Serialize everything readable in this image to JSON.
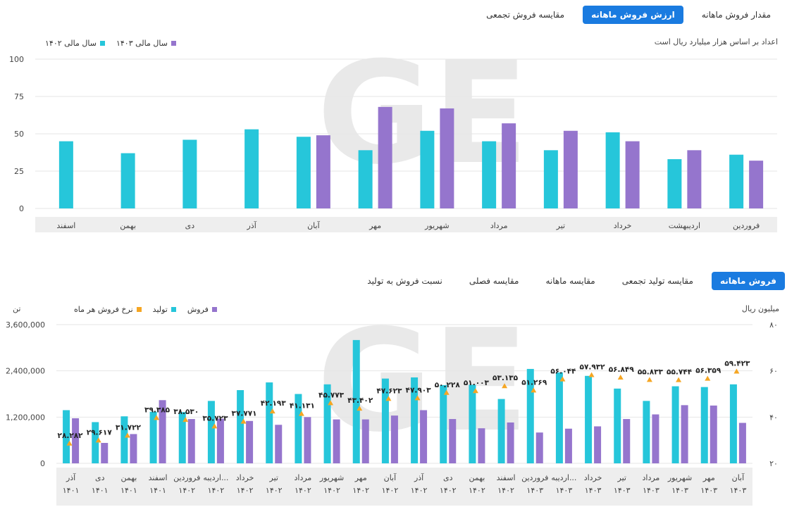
{
  "colors": {
    "cyan": "#26c6da",
    "purple": "#9575cd",
    "orange": "#f5a623",
    "accent": "#1a7be0",
    "category_band": "#eeeeee"
  },
  "top_tabs": [
    {
      "label": "مقدار فروش ماهانه",
      "active": false
    },
    {
      "label": "ارزش فروش ماهانه",
      "active": true
    },
    {
      "label": "مقایسه فروش تجمعی",
      "active": false
    }
  ],
  "top_chart": {
    "note": "اعداد بر اساس هزار میلیارد ریال است",
    "legend": [
      {
        "label": "سال مالی ۱۴۰۳",
        "color": "#9575cd"
      },
      {
        "label": "سال مالی ۱۴۰۲",
        "color": "#26c6da"
      }
    ]
  },
  "bottom_tabs": [
    {
      "label": "فروش ماهانه",
      "active": true
    },
    {
      "label": "مقایسه تولید تجمعی",
      "active": false
    },
    {
      "label": "مقایسه ماهانه",
      "active": false
    },
    {
      "label": "مقایسه فصلی",
      "active": false
    },
    {
      "label": "نسبت فروش به تولید",
      "active": false
    }
  ],
  "bottom_chart": {
    "unit_left": "تن",
    "unit_right": "میلیون ریال",
    "legend": [
      {
        "label": "فروش",
        "color": "#9575cd",
        "shape": "square"
      },
      {
        "label": "تولید",
        "color": "#26c6da",
        "shape": "square"
      },
      {
        "label": "نرخ فروش هر ماه",
        "color": "#f5a623",
        "shape": "square"
      }
    ]
  },
  "chart_data": [
    {
      "type": "bar",
      "categories": [
        "فروردین",
        "اردیبهشت",
        "خرداد",
        "تیر",
        "مرداد",
        "شهریور",
        "مهر",
        "آبان",
        "آذر",
        "دی",
        "بهمن",
        "اسفند"
      ],
      "series": [
        {
          "name": "سال مالی ۱۴۰۲",
          "color": "#26c6da",
          "values": [
            36,
            33,
            51,
            39,
            45,
            52,
            39,
            48,
            53,
            46,
            37,
            45
          ]
        },
        {
          "name": "سال مالی ۱۴۰۳",
          "color": "#9575cd",
          "values": [
            32,
            39,
            45,
            52,
            57,
            67,
            68,
            49,
            null,
            null,
            null,
            null
          ]
        }
      ],
      "ylim": [
        0,
        100
      ],
      "yticks": [
        "0",
        "25",
        "50",
        "75",
        "100"
      ],
      "grid": true
    },
    {
      "type": "bar",
      "categories": [
        [
          "آذر",
          "۱۴۰۱"
        ],
        [
          "دی",
          "۱۴۰۱"
        ],
        [
          "بهمن",
          "۱۴۰۱"
        ],
        [
          "اسفند",
          "۱۴۰۱"
        ],
        [
          "فروردین",
          "۱۴۰۲"
        ],
        [
          "اردیبه...",
          "۱۴۰۲"
        ],
        [
          "خرداد",
          "۱۴۰۲"
        ],
        [
          "تیر",
          "۱۴۰۲"
        ],
        [
          "مرداد",
          "۱۴۰۲"
        ],
        [
          "شهریور",
          "۱۴۰۲"
        ],
        [
          "مهر",
          "۱۴۰۲"
        ],
        [
          "آبان",
          "۱۴۰۲"
        ],
        [
          "آذر",
          "۱۴۰۲"
        ],
        [
          "دی",
          "۱۴۰۲"
        ],
        [
          "بهمن",
          "۱۴۰۲"
        ],
        [
          "اسفند",
          "۱۴۰۲"
        ],
        [
          "فروردین",
          "۱۴۰۳"
        ],
        [
          "اردیبه...",
          "۱۴۰۳"
        ],
        [
          "خرداد",
          "۱۴۰۳"
        ],
        [
          "تیر",
          "۱۴۰۳"
        ],
        [
          "مرداد",
          "۱۴۰۳"
        ],
        [
          "شهریور",
          "۱۴۰۳"
        ],
        [
          "مهر",
          "۱۴۰۳"
        ],
        [
          "آبان",
          "۱۴۰۳"
        ]
      ],
      "series": [
        {
          "name": "تولید",
          "color": "#26c6da",
          "axis": "left",
          "values": [
            1380000,
            1070000,
            1220000,
            1340000,
            1330000,
            1620000,
            1900000,
            2100000,
            1800000,
            2050000,
            3200000,
            2200000,
            2230000,
            2030000,
            2040000,
            1670000,
            2450000,
            2360000,
            2270000,
            1940000,
            1620000,
            2000000,
            1980000,
            2050000
          ]
        },
        {
          "name": "فروش",
          "color": "#9575cd",
          "axis": "left",
          "values": [
            1170000,
            530000,
            760000,
            1640000,
            1150000,
            1160000,
            1100000,
            1000000,
            1200000,
            1140000,
            1140000,
            1240000,
            1380000,
            1150000,
            910000,
            1060000,
            800000,
            900000,
            960000,
            1150000,
            1270000,
            1510000,
            1500000,
            1050000
          ]
        },
        {
          "name": "نرخ فروش هر ماه",
          "color": "#f5a623",
          "axis": "right",
          "values": [
            28.282,
            29.617,
            31.722,
            39.385,
            38.53,
            35.723,
            37.771,
            42.193,
            41.131,
            45.773,
            43.402,
            47.623,
            47.903,
            50.228,
            51.003,
            53.135,
            51.269,
            56.044,
            57.932,
            56.849,
            55.833,
            55.744,
            56.359,
            59.423
          ],
          "labels": [
            "۲۸.۲۸۲",
            "۲۹.۶۱۷",
            "۳۱.۷۲۲",
            "۳۹.۳۸۵",
            "۳۸.۵۳۰",
            "۳۵.۷۲۳",
            "۳۷.۷۷۱",
            "۴۲.۱۹۳",
            "۴۱.۱۳۱",
            "۴۵.۷۷۳",
            "۴۳.۴۰۲",
            "۴۷.۶۲۳",
            "۴۷.۹۰۳",
            "۵۰.۲۲۸",
            "۵۱.۰۰۳",
            "۵۳.۱۳۵",
            "۵۱.۲۶۹",
            "۵۶.۰۴۴",
            "۵۷.۹۳۲",
            "۵۶.۸۴۹",
            "۵۵.۸۳۳",
            "۵۵.۷۴۴",
            "۵۶.۳۵۹",
            "۵۹.۴۲۳"
          ]
        }
      ],
      "ylim_left": [
        0,
        3600000
      ],
      "yticks_left": [
        "0",
        "1,200,000",
        "2,400,000",
        "3,600,000"
      ],
      "ylim_right": [
        20,
        80
      ],
      "yticks_right": [
        "۲۰",
        "۴۰",
        "۶۰",
        "۸۰"
      ],
      "grid": true
    }
  ]
}
